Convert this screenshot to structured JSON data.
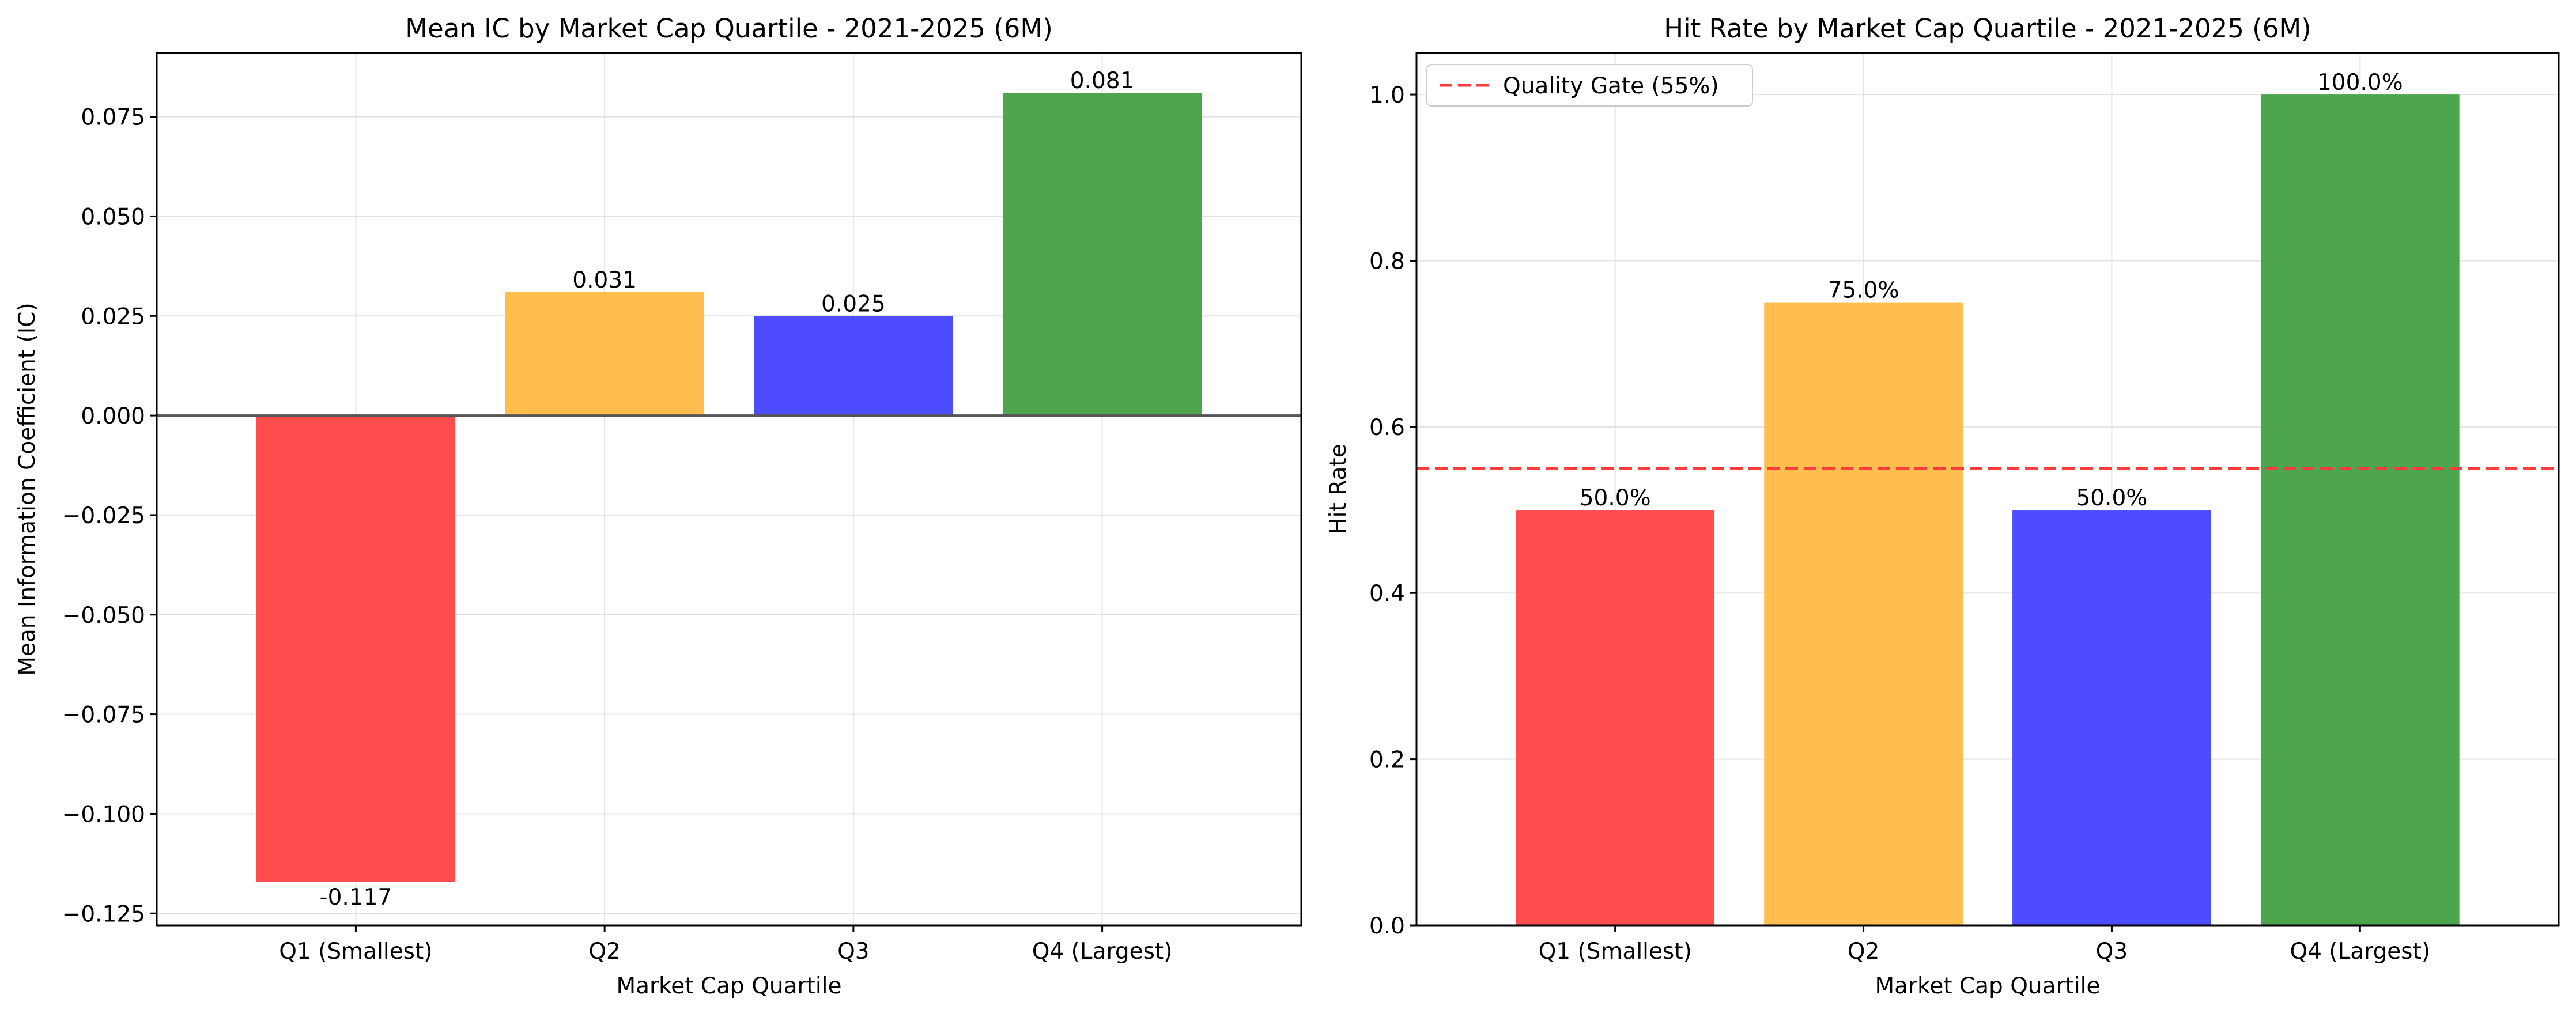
{
  "chart_data": [
    {
      "type": "bar",
      "title": "Mean IC by Market Cap Quartile - 2021-2025 (6M)",
      "xlabel": "Market Cap Quartile",
      "ylabel": "Mean Information Coefficient (IC)",
      "categories": [
        "Q1 (Smallest)",
        "Q2",
        "Q3",
        "Q4 (Largest)"
      ],
      "values": [
        -0.117,
        0.031,
        0.025,
        0.081
      ],
      "value_labels": [
        "-0.117",
        "0.031",
        "0.025",
        "0.081"
      ],
      "colors": [
        "#ff4d4d",
        "#ffbe4d",
        "#4d4dff",
        "#4da64d"
      ],
      "ylim": [
        -0.128,
        0.091
      ],
      "yticks": [
        -0.125,
        -0.1,
        -0.075,
        -0.05,
        -0.025,
        0.0,
        0.025,
        0.05,
        0.075
      ],
      "ytick_labels": [
        "−0.125",
        "−0.100",
        "−0.075",
        "−0.050",
        "−0.025",
        "0.000",
        "0.025",
        "0.050",
        "0.075"
      ],
      "zero_line": true,
      "grid": true
    },
    {
      "type": "bar",
      "title": "Hit Rate by Market Cap Quartile - 2021-2025 (6M)",
      "xlabel": "Market Cap Quartile",
      "ylabel": "Hit Rate",
      "categories": [
        "Q1 (Smallest)",
        "Q2",
        "Q3",
        "Q4 (Largest)"
      ],
      "values": [
        0.5,
        0.75,
        0.5,
        1.0
      ],
      "value_labels": [
        "50.0%",
        "75.0%",
        "50.0%",
        "100.0%"
      ],
      "colors": [
        "#ff4d4d",
        "#ffbe4d",
        "#4d4dff",
        "#4da64d"
      ],
      "ylim": [
        0,
        1.05
      ],
      "yticks": [
        0.0,
        0.2,
        0.4,
        0.6,
        0.8,
        1.0
      ],
      "ytick_labels": [
        "0.0",
        "0.2",
        "0.4",
        "0.6",
        "0.8",
        "1.0"
      ],
      "reference_line": {
        "value": 0.55,
        "label": "Quality Gate (55%)",
        "color": "#ff3b3b"
      },
      "legend": "top-left",
      "grid": true
    }
  ]
}
